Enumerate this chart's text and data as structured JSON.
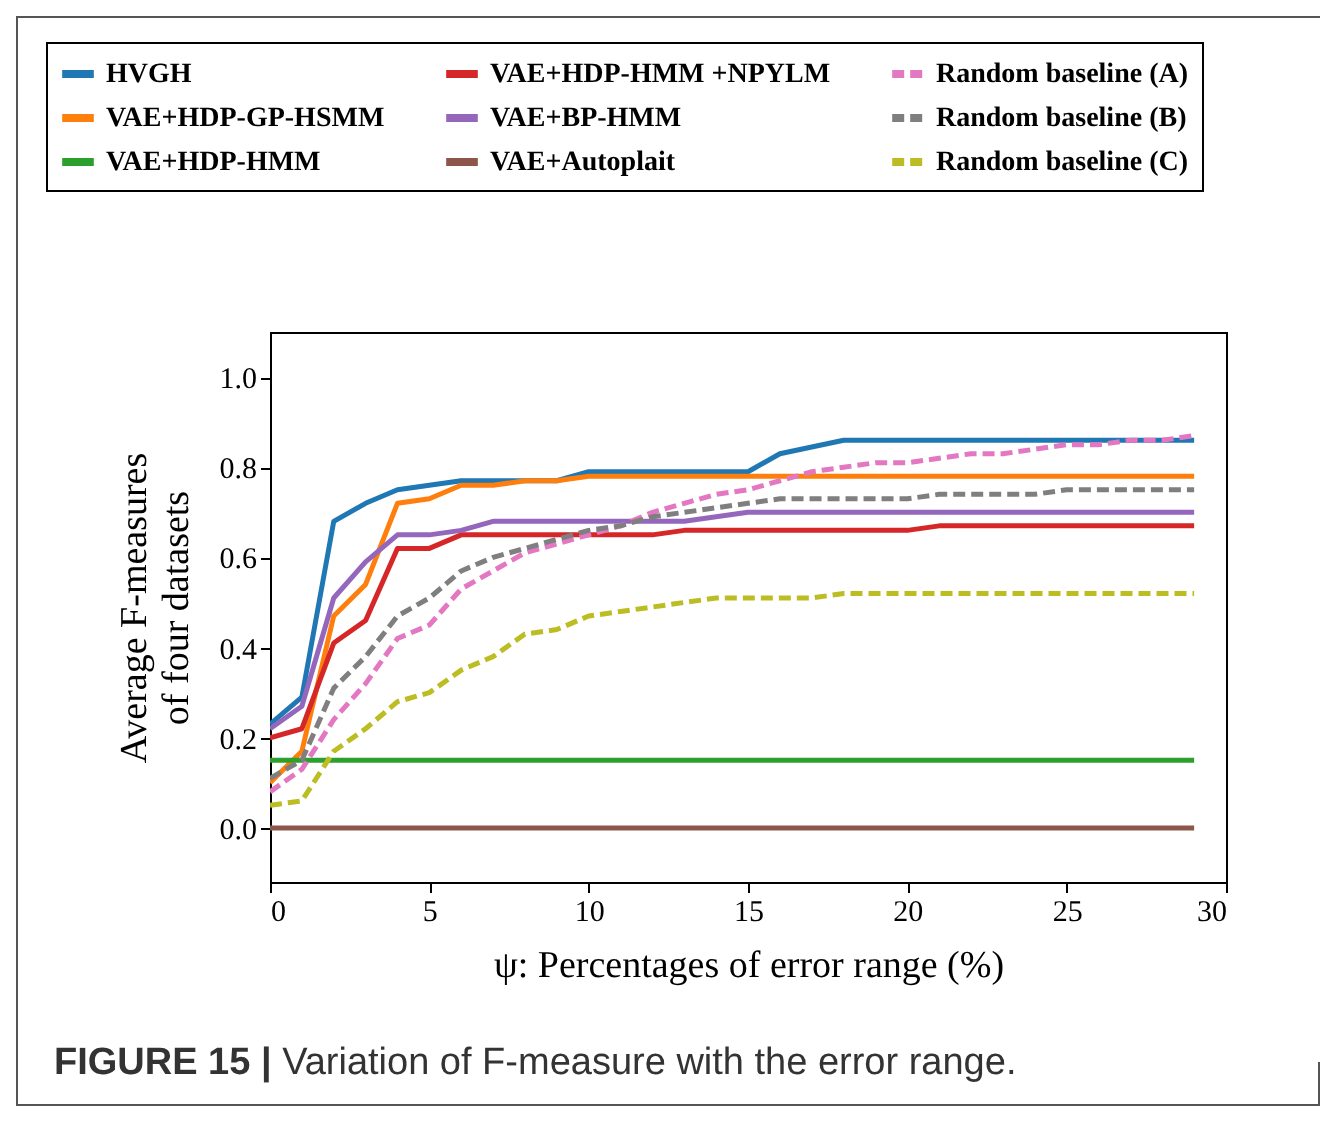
{
  "chart_data": {
    "type": "line",
    "xlabel": "ψ: Percentages of error range (%)",
    "ylabel": "Average F-measures of four datasets",
    "annotations": [
      "FIGURE 15 | Variation of F-measure with the error range."
    ],
    "x": [
      0,
      1,
      2,
      3,
      4,
      5,
      6,
      7,
      8,
      9,
      10,
      11,
      12,
      13,
      14,
      15,
      16,
      17,
      18,
      19,
      20,
      21,
      22,
      23,
      24,
      25,
      26,
      27,
      28,
      29
    ],
    "series": [
      {
        "name": "HVGH",
        "color": "#1f77b4",
        "line_style": "solid",
        "values": [
          0.23,
          0.29,
          0.68,
          0.72,
          0.75,
          0.76,
          0.77,
          0.77,
          0.77,
          0.77,
          0.79,
          0.79,
          0.79,
          0.79,
          0.79,
          0.79,
          0.83,
          0.845,
          0.86,
          0.86,
          0.86,
          0.86,
          0.86,
          0.86,
          0.86,
          0.86,
          0.86,
          0.86,
          0.86,
          0.86
        ]
      },
      {
        "name": "VAE+HDP-GP-HSMM",
        "color": "#ff7f0e",
        "line_style": "solid",
        "values": [
          0.1,
          0.17,
          0.47,
          0.54,
          0.72,
          0.73,
          0.76,
          0.76,
          0.77,
          0.77,
          0.78,
          0.78,
          0.78,
          0.78,
          0.78,
          0.78,
          0.78,
          0.78,
          0.78,
          0.78,
          0.78,
          0.78,
          0.78,
          0.78,
          0.78,
          0.78,
          0.78,
          0.78,
          0.78,
          0.78
        ]
      },
      {
        "name": "VAE+HDP-HMM",
        "color": "#2ca02c",
        "line_style": "solid",
        "values": [
          0.15,
          0.15,
          0.15,
          0.15,
          0.15,
          0.15,
          0.15,
          0.15,
          0.15,
          0.15,
          0.15,
          0.15,
          0.15,
          0.15,
          0.15,
          0.15,
          0.15,
          0.15,
          0.15,
          0.15,
          0.15,
          0.15,
          0.15,
          0.15,
          0.15,
          0.15,
          0.15,
          0.15,
          0.15,
          0.15
        ]
      },
      {
        "name": "VAE+HDP-HMM +NPYLM",
        "color": "#d62728",
        "line_style": "solid",
        "values": [
          0.2,
          0.22,
          0.41,
          0.46,
          0.62,
          0.62,
          0.65,
          0.65,
          0.65,
          0.65,
          0.65,
          0.65,
          0.65,
          0.66,
          0.66,
          0.66,
          0.66,
          0.66,
          0.66,
          0.66,
          0.66,
          0.67,
          0.67,
          0.67,
          0.67,
          0.67,
          0.67,
          0.67,
          0.67,
          0.67
        ]
      },
      {
        "name": "VAE+BP-HMM",
        "color": "#9467bd",
        "line_style": "solid",
        "values": [
          0.22,
          0.27,
          0.51,
          0.59,
          0.65,
          0.65,
          0.66,
          0.68,
          0.68,
          0.68,
          0.68,
          0.68,
          0.68,
          0.68,
          0.69,
          0.7,
          0.7,
          0.7,
          0.7,
          0.7,
          0.7,
          0.7,
          0.7,
          0.7,
          0.7,
          0.7,
          0.7,
          0.7,
          0.7,
          0.7
        ]
      },
      {
        "name": "VAE+Autoplait",
        "color": "#8c564b",
        "line_style": "solid",
        "values": [
          0,
          0,
          0,
          0,
          0,
          0,
          0,
          0,
          0,
          0,
          0,
          0,
          0,
          0,
          0,
          0,
          0,
          0,
          0,
          0,
          0,
          0,
          0,
          0,
          0,
          0,
          0,
          0,
          0,
          0
        ]
      },
      {
        "name": "Random baseline (A)",
        "color": "#e377c2",
        "line_style": "dashed",
        "values": [
          0.08,
          0.13,
          0.24,
          0.32,
          0.42,
          0.45,
          0.53,
          0.57,
          0.61,
          0.63,
          0.65,
          0.67,
          0.7,
          0.72,
          0.74,
          0.75,
          0.77,
          0.79,
          0.8,
          0.81,
          0.81,
          0.82,
          0.83,
          0.83,
          0.84,
          0.85,
          0.85,
          0.86,
          0.86,
          0.87
        ]
      },
      {
        "name": "Random baseline (B)",
        "color": "#7f7f7f",
        "line_style": "dashed",
        "values": [
          0.11,
          0.15,
          0.31,
          0.38,
          0.47,
          0.51,
          0.57,
          0.6,
          0.62,
          0.64,
          0.66,
          0.67,
          0.69,
          0.7,
          0.71,
          0.72,
          0.73,
          0.73,
          0.73,
          0.73,
          0.73,
          0.74,
          0.74,
          0.74,
          0.74,
          0.75,
          0.75,
          0.75,
          0.75,
          0.75
        ]
      },
      {
        "name": "Random baseline (C)",
        "color": "#bcbd22",
        "line_style": "dashed",
        "values": [
          0.05,
          0.06,
          0.17,
          0.22,
          0.28,
          0.3,
          0.35,
          0.38,
          0.43,
          0.44,
          0.47,
          0.48,
          0.49,
          0.5,
          0.51,
          0.51,
          0.51,
          0.51,
          0.52,
          0.52,
          0.52,
          0.52,
          0.52,
          0.52,
          0.52,
          0.52,
          0.52,
          0.52,
          0.52,
          0.52
        ]
      }
    ],
    "xlim": [
      0,
      30
    ],
    "xticks": [
      0,
      5,
      10,
      15,
      20,
      25,
      30
    ],
    "ylim": [
      -0.12,
      1.1
    ],
    "yticks": [
      {
        "value": 0,
        "label": "0.0"
      },
      {
        "value": 0.2,
        "label": "0.2"
      },
      {
        "value": 0.4,
        "label": "0.4"
      },
      {
        "value": 0.6,
        "label": "0.6"
      },
      {
        "value": 0.8,
        "label": "0.8"
      },
      {
        "value": 1,
        "label": "1.0"
      }
    ],
    "legend": "top",
    "grid": false
  }
}
